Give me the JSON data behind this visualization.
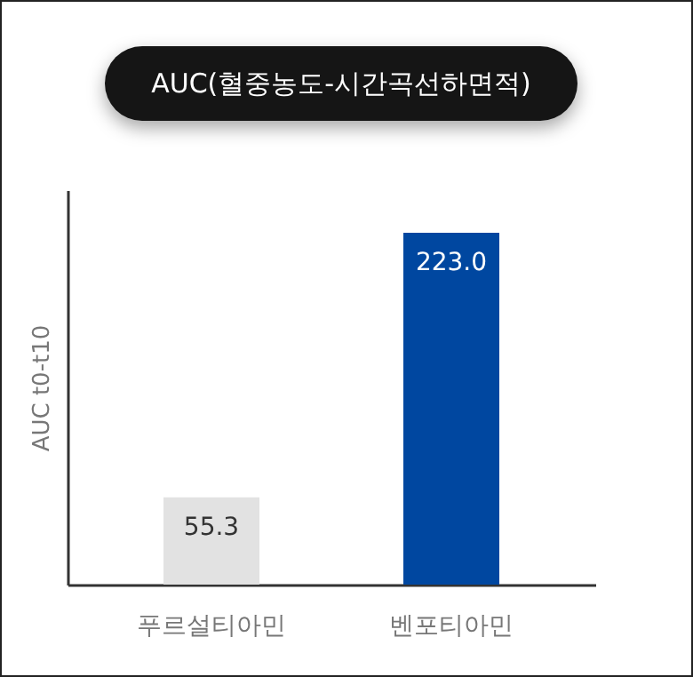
{
  "chart_data": {
    "type": "bar",
    "title": "AUC(혈중농도-시간곡선하면적)",
    "ylabel": "AUC t0-t10",
    "categories": [
      "푸르설티아민",
      "벤포티아민"
    ],
    "values": [
      55.3,
      223.0
    ],
    "colors": [
      "#e2e2e2",
      "#0047a0"
    ],
    "value_labels": [
      "55.3",
      "223.0"
    ],
    "ylim": [
      0,
      250
    ]
  }
}
